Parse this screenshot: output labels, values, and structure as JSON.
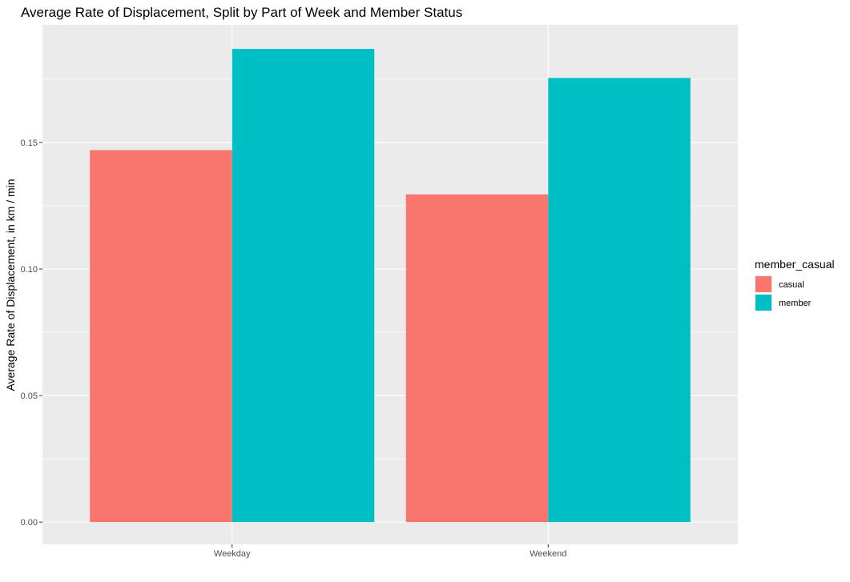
{
  "chart_data": {
    "type": "bar",
    "title": "Average Rate of Displacement, Split by Part of Week and Member Status",
    "xlabel": "",
    "ylabel": "Average Rate of Displacement, in km / min",
    "categories": [
      "Weekday",
      "Weekend"
    ],
    "series": [
      {
        "name": "casual",
        "values": [
          0.147,
          0.1295
        ],
        "color": "#F8766D"
      },
      {
        "name": "member",
        "values": [
          0.187,
          0.1755
        ],
        "color": "#00BFC4"
      }
    ],
    "ylim": [
      -0.0088,
      0.1965
    ],
    "yticks": [
      0.0,
      0.05,
      0.1,
      0.15
    ],
    "ytick_labels": [
      "0.00",
      "0.05",
      "0.10",
      "0.15"
    ],
    "grid": true,
    "legend": {
      "title": "member_casual",
      "position": "right",
      "items": [
        "casual",
        "member"
      ]
    },
    "colors": {
      "panel_background": "#EBEBEB",
      "gridline": "#FFFFFF",
      "casual": "#F8766D",
      "member": "#00BFC4"
    }
  }
}
